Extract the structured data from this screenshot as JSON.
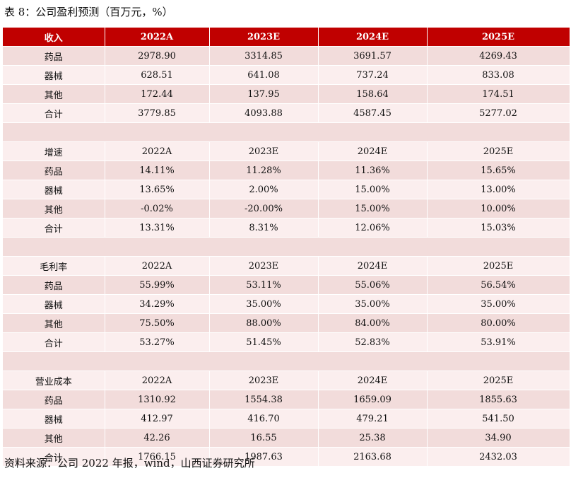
{
  "title": "表 8：公司盈利预测（百万元，%）",
  "header": [
    "收入",
    "2022A",
    "2023E",
    "2024E",
    "2025E"
  ],
  "sections": [
    {
      "rows": [
        [
          "药品",
          "2978.90",
          "3314.85",
          "3691.57",
          "4269.43"
        ],
        [
          "器械",
          "628.51",
          "641.08",
          "737.24",
          "833.08"
        ],
        [
          "其他",
          "172.44",
          "137.95",
          "158.64",
          "174.51"
        ],
        [
          "合计",
          "3779.85",
          "4093.88",
          "4587.45",
          "5277.02"
        ]
      ]
    },
    {
      "heading": [
        "增速",
        "2022A",
        "2023E",
        "2024E",
        "2025E"
      ],
      "rows": [
        [
          "药品",
          "14.11%",
          "11.28%",
          "11.36%",
          "15.65%"
        ],
        [
          "器械",
          "13.65%",
          "2.00%",
          "15.00%",
          "13.00%"
        ],
        [
          "其他",
          "-0.02%",
          "-20.00%",
          "15.00%",
          "10.00%"
        ],
        [
          "合计",
          "13.31%",
          "8.31%",
          "12.06%",
          "15.03%"
        ]
      ]
    },
    {
      "heading": [
        "毛利率",
        "2022A",
        "2023E",
        "2024E",
        "2025E"
      ],
      "rows": [
        [
          "药品",
          "55.99%",
          "53.11%",
          "55.06%",
          "56.54%"
        ],
        [
          "器械",
          "34.29%",
          "35.00%",
          "35.00%",
          "35.00%"
        ],
        [
          "其他",
          "75.50%",
          "88.00%",
          "84.00%",
          "80.00%"
        ],
        [
          "合计",
          "53.27%",
          "51.45%",
          "52.83%",
          "53.91%"
        ]
      ]
    },
    {
      "heading": [
        "营业成本",
        "2022A",
        "2023E",
        "2024E",
        "2025E"
      ],
      "rows": [
        [
          "药品",
          "1310.92",
          "1554.38",
          "1659.09",
          "1855.63"
        ],
        [
          "器械",
          "412.97",
          "416.70",
          "479.21",
          "541.50"
        ],
        [
          "其他",
          "42.26",
          "16.55",
          "25.38",
          "34.90"
        ],
        [
          "合计",
          "1766.15",
          "1987.63",
          "2163.68",
          "2432.03"
        ]
      ]
    }
  ],
  "source": "资料来源：公司 2022 年报，wind，山西证券研究所",
  "colors": {
    "header_bg": "#c00000",
    "row_dark": "#f2dcdb",
    "row_light": "#fbeeee"
  }
}
